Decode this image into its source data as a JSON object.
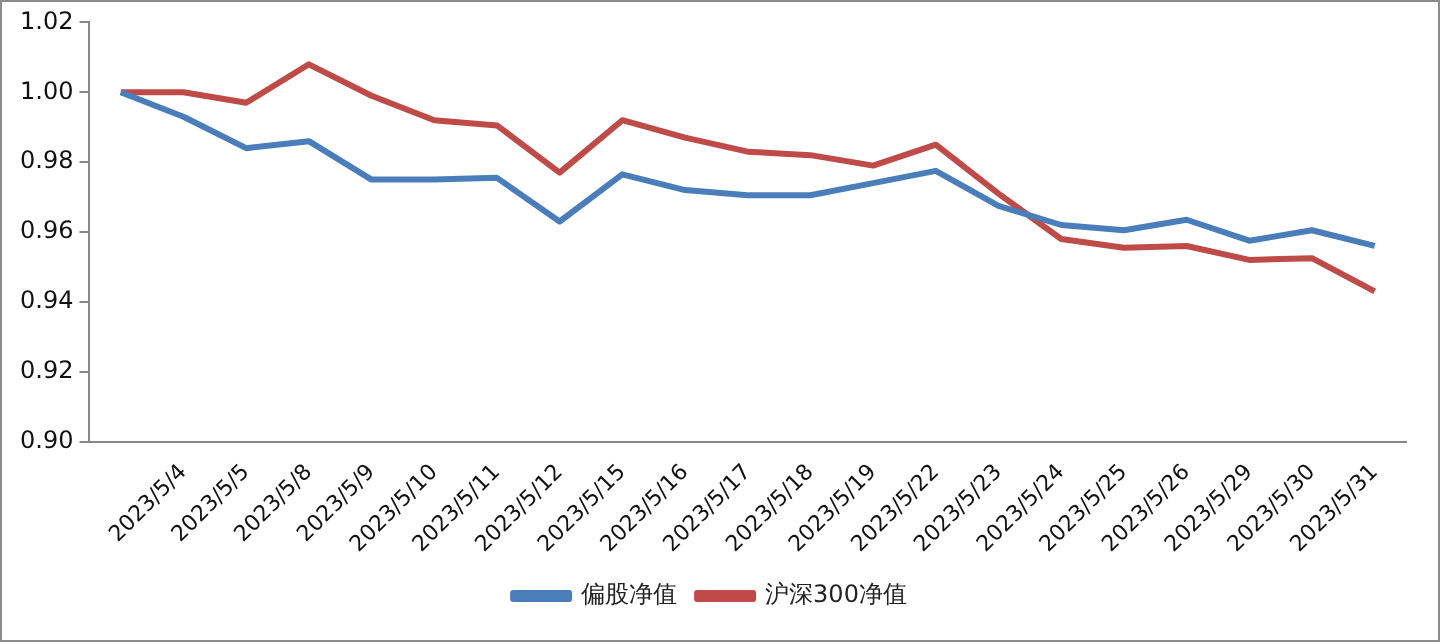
{
  "chart_data": {
    "type": "line",
    "categories": [
      null,
      "2023/5/4",
      "2023/5/5",
      "2023/5/8",
      "2023/5/9",
      "2023/5/10",
      "2023/5/11",
      "2023/5/12",
      "2023/5/15",
      "2023/5/16",
      "2023/5/17",
      "2023/5/18",
      "2023/5/19",
      "2023/5/22",
      "2023/5/23",
      "2023/5/24",
      "2023/5/25",
      "2023/5/26",
      "2023/5/29",
      "2023/5/30",
      "2023/5/31"
    ],
    "series": [
      {
        "name": "偏股净值",
        "color": "#4a7ebb",
        "values": [
          1.0,
          0.993,
          0.984,
          0.986,
          0.975,
          0.975,
          0.9755,
          0.963,
          0.9765,
          0.972,
          0.9705,
          0.9705,
          0.974,
          0.9775,
          0.9675,
          0.962,
          0.9605,
          0.9635,
          0.9575,
          0.9605,
          0.956
        ]
      },
      {
        "name": "沪深300净值",
        "color": "#be4b48",
        "values": [
          1.0,
          1.0,
          0.997,
          1.008,
          0.999,
          0.992,
          0.9905,
          0.977,
          0.992,
          0.987,
          0.983,
          0.982,
          0.979,
          0.985,
          0.971,
          0.958,
          0.9555,
          0.956,
          0.952,
          0.9525,
          0.943
        ]
      }
    ],
    "ylim": [
      0.9,
      1.02
    ],
    "yticks": [
      {
        "value": 0.9,
        "label": "0.90"
      },
      {
        "value": 0.92,
        "label": "0.92"
      },
      {
        "value": 0.94,
        "label": "0.94"
      },
      {
        "value": 0.96,
        "label": "0.96"
      },
      {
        "value": 0.98,
        "label": "0.98"
      },
      {
        "value": 1.0,
        "label": "1.00"
      },
      {
        "value": 1.02,
        "label": "1.02"
      }
    ],
    "grid": false,
    "legend": "bottom",
    "marker": "none",
    "line_style": "solid"
  }
}
